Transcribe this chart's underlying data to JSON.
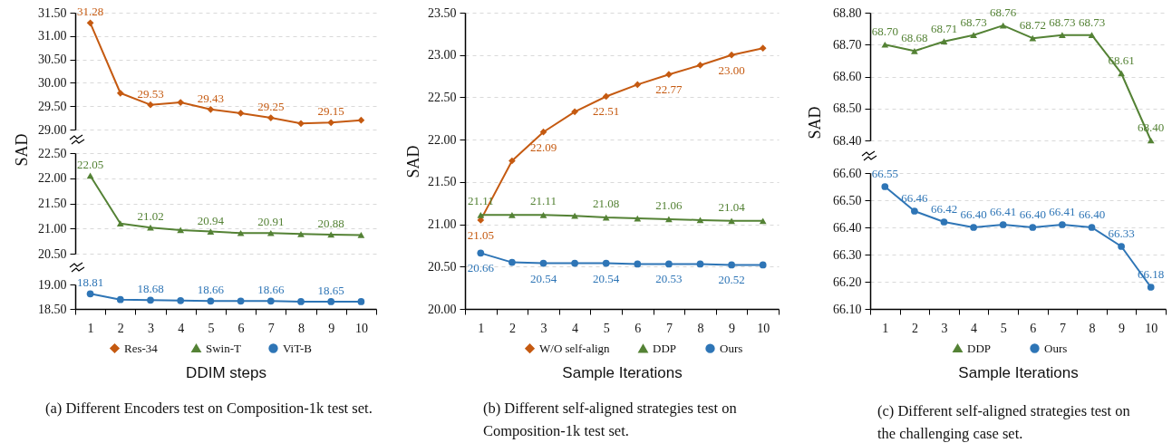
{
  "chart_data": [
    {
      "type": "line",
      "categories": [
        "1",
        "2",
        "3",
        "4",
        "5",
        "6",
        "7",
        "8",
        "9",
        "10"
      ],
      "ylim": [
        29,
        31.5
      ],
      "yticks": [
        {
          "value": 29,
          "label": "29.00"
        },
        {
          "value": 29.5,
          "label": "29.50"
        },
        {
          "value": 30,
          "label": "30.00"
        },
        {
          "value": 30.5,
          "label": "30.50"
        },
        {
          "value": 31,
          "label": "31.00"
        },
        {
          "value": 31.5,
          "label": "31.50"
        }
      ],
      "grid": "y",
      "legend": "bottom",
      "tick_labels": "y",
      "series": [
        {
          "name": "Res-34",
          "color": "#c55a11",
          "marker": "diamond",
          "values": [
            31.28,
            29.78,
            29.53,
            29.58,
            29.43,
            29.35,
            29.25,
            29.13,
            29.15,
            29.2
          ],
          "value_labels": [
            "31.28",
            null,
            "29.53",
            null,
            "29.43",
            null,
            "29.25",
            null,
            "29.15",
            null
          ]
        }
      ]
    },
    {
      "type": "line",
      "categories": [
        "1",
        "2",
        "3",
        "4",
        "5",
        "6",
        "7",
        "8",
        "9",
        "10"
      ],
      "ylabel": "SAD",
      "ylim": [
        20.5,
        22.5
      ],
      "yticks": [
        {
          "value": 20.5,
          "label": "20.50"
        },
        {
          "value": 21,
          "label": "21.00"
        },
        {
          "value": 21.5,
          "label": "21.50"
        },
        {
          "value": 22,
          "label": "22.00"
        },
        {
          "value": 22.5,
          "label": "22.50"
        }
      ],
      "grid": "y",
      "legend": "bottom",
      "tick_labels": "y",
      "series": [
        {
          "name": "Swin-T",
          "color": "#548235",
          "marker": "triangle",
          "values": [
            22.05,
            21.1,
            21.02,
            20.97,
            20.94,
            20.91,
            20.91,
            20.89,
            20.88,
            20.87
          ],
          "value_labels": [
            "22.05",
            null,
            "21.02",
            null,
            "20.94",
            null,
            "20.91",
            null,
            "20.88",
            null
          ]
        }
      ]
    },
    {
      "type": "line",
      "categories": [
        "1",
        "2",
        "3",
        "4",
        "5",
        "6",
        "7",
        "8",
        "9",
        "10"
      ],
      "xlabel": "DDIM steps",
      "ylim": [
        18.5,
        19
      ],
      "yticks": [
        {
          "value": 18.5,
          "label": "18.50"
        },
        {
          "value": 19,
          "label": "19.00"
        }
      ],
      "legend": "bottom",
      "annotations": [
        "(a) Different Encoders test on Composition-1k test set."
      ],
      "series": [
        {
          "name": "ViT-B",
          "color": "#2e75b6",
          "marker": "circle",
          "values": [
            18.81,
            18.69,
            18.68,
            18.67,
            18.66,
            18.66,
            18.66,
            18.65,
            18.65,
            18.65
          ],
          "value_labels": [
            "18.81",
            null,
            "18.68",
            null,
            "18.66",
            null,
            "18.66",
            null,
            "18.65",
            null
          ]
        }
      ]
    },
    {
      "type": "line",
      "categories": [
        "1",
        "2",
        "3",
        "4",
        "5",
        "6",
        "7",
        "8",
        "9",
        "10"
      ],
      "xlabel": "Sample Iterations",
      "ylabel": "SAD",
      "ylim": [
        20,
        23.5
      ],
      "yticks": [
        {
          "value": 20,
          "label": "20.00"
        },
        {
          "value": 20.5,
          "label": "20.50"
        },
        {
          "value": 21,
          "label": "21.00"
        },
        {
          "value": 21.5,
          "label": "21.50"
        },
        {
          "value": 22,
          "label": "22.00"
        },
        {
          "value": 22.5,
          "label": "22.50"
        },
        {
          "value": 23,
          "label": "23.00"
        },
        {
          "value": 23.5,
          "label": "23.50"
        }
      ],
      "grid": "y",
      "legend": "bottom",
      "annotations": [
        "(b) Different self-aligned strategies test on Composition-1k test set."
      ],
      "series": [
        {
          "name": "W/O self-align",
          "color": "#c55a11",
          "marker": "diamond",
          "values": [
            21.05,
            21.75,
            22.09,
            22.33,
            22.51,
            22.65,
            22.77,
            22.88,
            23.0,
            23.08
          ],
          "value_labels": [
            "21.05",
            null,
            "22.09",
            null,
            "22.51",
            null,
            "22.77",
            null,
            "23.00",
            null
          ]
        },
        {
          "name": "DDP",
          "color": "#548235",
          "marker": "triangle",
          "values": [
            21.11,
            21.11,
            21.11,
            21.1,
            21.08,
            21.07,
            21.06,
            21.05,
            21.04,
            21.04
          ],
          "value_labels": [
            "21.11",
            null,
            "21.11",
            null,
            "21.08",
            null,
            "21.06",
            null,
            "21.04",
            null
          ]
        },
        {
          "name": "Ours",
          "color": "#2e75b6",
          "marker": "circle",
          "values": [
            20.66,
            20.55,
            20.54,
            20.54,
            20.54,
            20.53,
            20.53,
            20.53,
            20.52,
            20.52
          ],
          "value_labels": [
            "20.66",
            null,
            "20.54",
            null,
            "20.54",
            null,
            "20.53",
            null,
            "20.52",
            null
          ]
        }
      ]
    },
    {
      "type": "line",
      "categories": [
        "1",
        "2",
        "3",
        "4",
        "5",
        "6",
        "7",
        "8",
        "9",
        "10"
      ],
      "ylabel": "SAD",
      "ylim": [
        68.4,
        68.8
      ],
      "yticks": [
        {
          "value": 68.4,
          "label": "68.40"
        },
        {
          "value": 68.5,
          "label": "68.50"
        },
        {
          "value": 68.6,
          "label": "68.60"
        },
        {
          "value": 68.7,
          "label": "68.70"
        },
        {
          "value": 68.8,
          "label": "68.80"
        }
      ],
      "grid": "y",
      "legend": "bottom",
      "tick_labels": "y",
      "series": [
        {
          "name": "DDP",
          "color": "#548235",
          "marker": "triangle",
          "values": [
            68.7,
            68.68,
            68.71,
            68.73,
            68.76,
            68.72,
            68.73,
            68.73,
            68.61,
            68.4
          ],
          "value_labels": [
            "68.70",
            "68.68",
            "68.71",
            "68.73",
            "68.76",
            "68.72",
            "68.73",
            "68.73",
            "68.61",
            "68.40"
          ]
        }
      ]
    },
    {
      "type": "line",
      "categories": [
        "1",
        "2",
        "3",
        "4",
        "5",
        "6",
        "7",
        "8",
        "9",
        "10"
      ],
      "xlabel": "Sample Iterations",
      "ylim": [
        66.1,
        66.6
      ],
      "yticks": [
        {
          "value": 66.1,
          "label": "66.10"
        },
        {
          "value": 66.2,
          "label": "66.20"
        },
        {
          "value": 66.3,
          "label": "66.30"
        },
        {
          "value": 66.4,
          "label": "66.40"
        },
        {
          "value": 66.5,
          "label": "66.50"
        },
        {
          "value": 66.6,
          "label": "66.60"
        }
      ],
      "grid": "y",
      "legend": "bottom",
      "annotations": [
        "(c) Different self-aligned strategies test on the challenging case set."
      ],
      "series": [
        {
          "name": "Ours",
          "color": "#2e75b6",
          "marker": "circle",
          "values": [
            66.55,
            66.46,
            66.42,
            66.4,
            66.41,
            66.4,
            66.41,
            66.4,
            66.33,
            66.18
          ],
          "value_labels": [
            "66.55",
            "66.46",
            "66.42",
            "66.40",
            "66.41",
            "66.40",
            "66.41",
            "66.40",
            "66.33",
            "66.18"
          ]
        }
      ]
    }
  ]
}
